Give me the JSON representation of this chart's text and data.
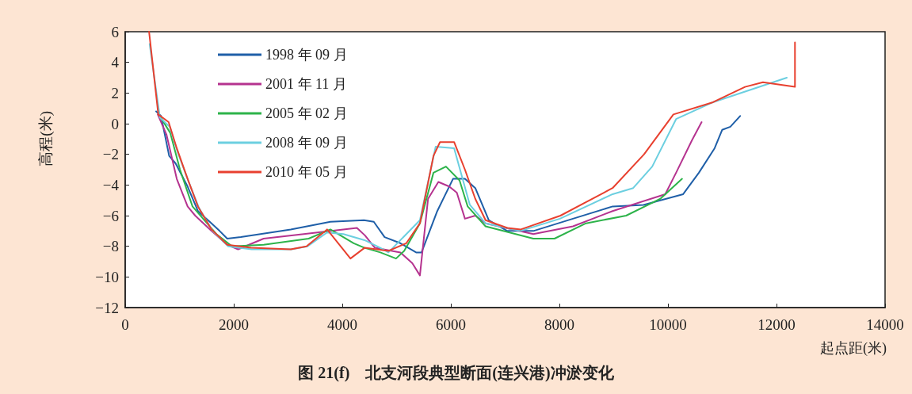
{
  "chart_data": {
    "type": "line",
    "title": "图 21(f)　北支河段典型断面(连兴港)冲淤变化",
    "xlabel": "起点距(米)",
    "ylabel": "高程(米)",
    "xlim": [
      0,
      14000
    ],
    "xticks": [
      0,
      2000,
      4000,
      6000,
      8000,
      10000,
      12000,
      14000
    ],
    "ylim": [
      -12,
      6
    ],
    "yticks": [
      -12,
      -10,
      -8,
      -6,
      -4,
      -2,
      0,
      2,
      4,
      6
    ],
    "grid": false,
    "legend": "top left",
    "marker": "none",
    "line_style": "solid",
    "series": [
      {
        "name": "1998 年 09 月",
        "color": "#1f5fa8",
        "x": [
          570,
          660,
          810,
          930,
          1150,
          1340,
          1590,
          1740,
          1880,
          2130,
          3050,
          3780,
          4400,
          4580,
          4780,
          5070,
          5360,
          5460,
          5750,
          6040,
          6260,
          6450,
          6700,
          7040,
          7520,
          8250,
          8980,
          9550,
          10280,
          10570,
          10860,
          11000,
          11150,
          11330
        ],
        "values": [
          0.8,
          0.5,
          -2.1,
          -2.6,
          -4.1,
          -5.7,
          -6.5,
          -7.0,
          -7.5,
          -7.4,
          -6.9,
          -6.4,
          -6.3,
          -6.4,
          -7.4,
          -7.8,
          -8.4,
          -8.4,
          -5.7,
          -3.6,
          -3.6,
          -4.2,
          -6.3,
          -7.0,
          -7.0,
          -6.2,
          -5.4,
          -5.3,
          -4.6,
          -3.2,
          -1.6,
          -0.4,
          -0.2,
          0.5
        ]
      },
      {
        "name": "2001 年 11 月",
        "color": "#b5338f",
        "x": [
          600,
          760,
          950,
          1150,
          1290,
          1590,
          1880,
          2080,
          2550,
          3290,
          4270,
          4420,
          4600,
          5070,
          5290,
          5430,
          5580,
          5770,
          5970,
          6110,
          6260,
          6450,
          6640,
          7520,
          8250,
          8980,
          9950,
          10150,
          10440,
          10620
        ],
        "values": [
          0.6,
          -0.7,
          -3.6,
          -5.4,
          -6.0,
          -7.0,
          -7.9,
          -8.2,
          -7.5,
          -7.2,
          -6.8,
          -7.3,
          -8.1,
          -8.4,
          -9.1,
          -9.9,
          -4.9,
          -3.8,
          -4.1,
          -4.5,
          -6.2,
          -6.0,
          -6.5,
          -7.2,
          -6.7,
          -5.7,
          -4.6,
          -3.2,
          -1.1,
          0.1
        ]
      },
      {
        "name": "2005 年 02 月",
        "color": "#2db34a",
        "x": [
          620,
          830,
          1010,
          1240,
          1680,
          1970,
          2550,
          3380,
          3780,
          4210,
          4410,
          4700,
          4990,
          5140,
          5430,
          5680,
          5910,
          6160,
          6310,
          6640,
          7520,
          7910,
          8490,
          9230,
          9860,
          10260
        ],
        "values": [
          0.6,
          -0.6,
          -3.0,
          -5.4,
          -7.2,
          -8.0,
          -7.9,
          -7.5,
          -6.9,
          -7.8,
          -8.1,
          -8.4,
          -8.8,
          -8.3,
          -6.5,
          -3.2,
          -2.8,
          -3.7,
          -5.4,
          -6.7,
          -7.5,
          -7.5,
          -6.5,
          -6.0,
          -4.9,
          -3.6
        ]
      },
      {
        "name": "2008 年 09 月",
        "color": "#6ccfe0",
        "x": [
          450,
          640,
          820,
          970,
          1170,
          1360,
          1610,
          1900,
          2330,
          3060,
          3360,
          3720,
          4020,
          4410,
          4700,
          4850,
          5430,
          5720,
          6060,
          6350,
          6640,
          7280,
          8010,
          8980,
          9360,
          9710,
          10150,
          10830,
          12190
        ],
        "values": [
          5.2,
          0.4,
          -0.2,
          -1.9,
          -3.8,
          -5.5,
          -7.0,
          -8.0,
          -8.2,
          -8.2,
          -8.0,
          -7.1,
          -7.2,
          -7.6,
          -8.1,
          -8.4,
          -6.3,
          -1.5,
          -1.6,
          -5.3,
          -6.5,
          -7.0,
          -6.2,
          -4.6,
          -4.2,
          -2.8,
          0.3,
          1.4,
          3.0
        ]
      },
      {
        "name": "2010 年 05 月",
        "color": "#e8402f",
        "x": [
          440,
          610,
          800,
          950,
          1150,
          1340,
          1590,
          1880,
          2320,
          3050,
          3340,
          3720,
          4150,
          4410,
          4850,
          5180,
          5430,
          5680,
          5800,
          6060,
          6260,
          6450,
          6640,
          7040,
          7290,
          8020,
          8500,
          8980,
          9560,
          10100,
          10830,
          11420,
          11750,
          12340,
          12340
        ],
        "values": [
          6.0,
          0.6,
          0.1,
          -1.6,
          -3.6,
          -5.4,
          -6.9,
          -7.9,
          -8.1,
          -8.2,
          -8.0,
          -6.9,
          -8.8,
          -8.1,
          -8.3,
          -7.8,
          -6.5,
          -2.1,
          -1.2,
          -1.2,
          -3.0,
          -4.9,
          -6.3,
          -6.8,
          -6.9,
          -6.0,
          -5.1,
          -4.2,
          -2.0,
          0.6,
          1.4,
          2.4,
          2.7,
          2.4,
          5.3
        ]
      }
    ]
  }
}
